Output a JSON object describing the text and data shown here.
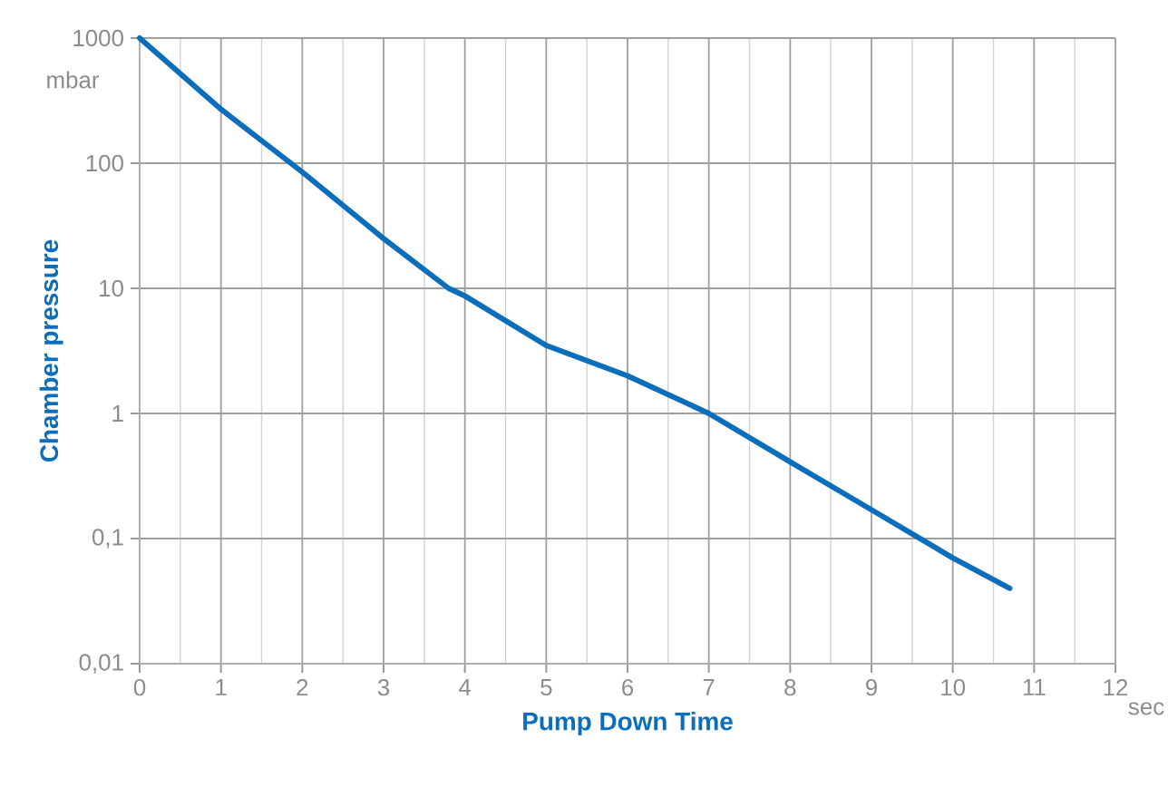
{
  "chart_data": {
    "type": "line",
    "xlabel": "Pump Down Time",
    "ylabel": "Chamber pressure",
    "annotations": [
      "mbar",
      "sec"
    ],
    "x": [
      0,
      1,
      2,
      3,
      3.8,
      4,
      5,
      6,
      7,
      8,
      9,
      10,
      10.7
    ],
    "series": [
      {
        "color": "#0a6ebd",
        "values": [
          1000,
          270,
          85,
          25,
          10,
          8.7,
          3.5,
          2.0,
          1.0,
          0.41,
          0.17,
          0.07,
          0.04
        ]
      }
    ],
    "log": "y",
    "grid": true,
    "marker": "none",
    "line_style": "solid",
    "xlim": [
      0,
      12
    ],
    "xticks": [
      0,
      1,
      2,
      3,
      4,
      5,
      6,
      7,
      8,
      9,
      10,
      11,
      12
    ],
    "ylim": [
      0.01,
      1000
    ],
    "yticks": [
      {
        "value": 0.01,
        "label": "0,01"
      },
      {
        "value": 0.1,
        "label": "0,1"
      },
      1,
      10,
      100,
      1000
    ]
  }
}
